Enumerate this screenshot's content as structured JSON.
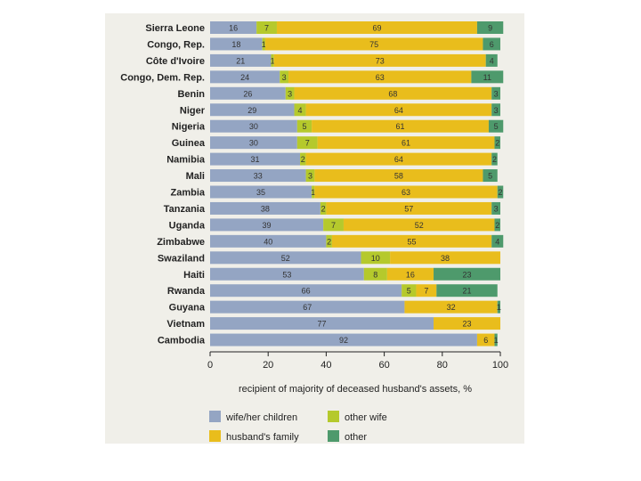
{
  "chart_data": {
    "type": "bar",
    "orientation": "horizontal",
    "stacked": true,
    "title": "",
    "xlabel": "recipient of majority of deceased husband's assets, %",
    "ylabel": "",
    "xlim": [
      0,
      100
    ],
    "xticks": [
      "0",
      "20",
      "40",
      "60",
      "80",
      "100"
    ],
    "categories": [
      "Sierra Leone",
      "Congo, Rep.",
      "Côte d'Ivoire",
      "Congo, Dem. Rep.",
      "Benin",
      "Niger",
      "Nigeria",
      "Guinea",
      "Namibia",
      "Mali",
      "Zambia",
      "Tanzania",
      "Uganda",
      "Zimbabwe",
      "Swaziland",
      "Haiti",
      "Rwanda",
      "Guyana",
      "Vietnam",
      "Cambodia"
    ],
    "series": [
      {
        "name": "wife/her children",
        "color": "#94a5c3",
        "values": [
          16,
          18,
          21,
          24,
          26,
          29,
          30,
          30,
          31,
          33,
          35,
          38,
          39,
          40,
          52,
          53,
          66,
          67,
          77,
          92
        ]
      },
      {
        "name": "other wife",
        "color": "#b5c92c",
        "values": [
          7,
          1,
          1,
          3,
          3,
          4,
          5,
          7,
          2,
          3,
          1,
          2,
          7,
          2,
          10,
          8,
          5,
          0,
          0,
          0
        ]
      },
      {
        "name": "husband's family",
        "color": "#e9bd1c",
        "values": [
          69,
          75,
          73,
          63,
          68,
          64,
          61,
          61,
          64,
          58,
          63,
          57,
          52,
          55,
          38,
          16,
          7,
          32,
          23,
          6
        ]
      },
      {
        "name": "other",
        "color": "#4e9a6c",
        "values": [
          9,
          6,
          4,
          11,
          3,
          3,
          5,
          2,
          2,
          5,
          2,
          3,
          2,
          4,
          0,
          23,
          21,
          1,
          0,
          1
        ]
      }
    ],
    "legend": {
      "placement": "bottom",
      "items": [
        "wife/her children",
        "other wife",
        "husband's family",
        "other"
      ]
    },
    "grid": false
  }
}
